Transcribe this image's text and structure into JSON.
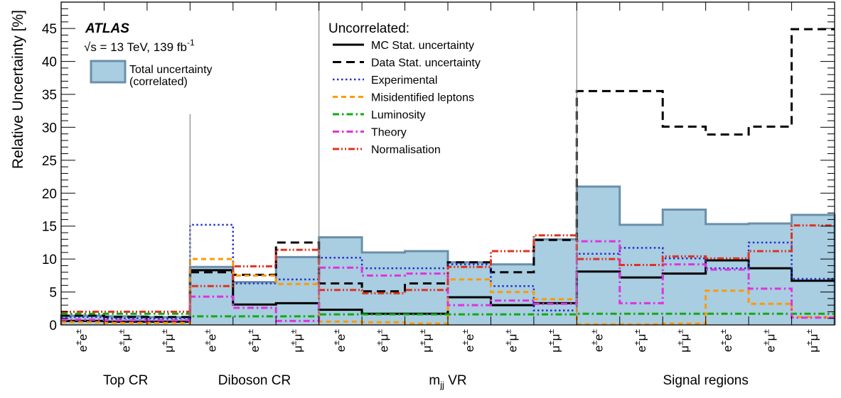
{
  "colors": {
    "band_fill": "#a9cde1",
    "band_edge": "#6a8fa9",
    "mc_stat": "#000000",
    "data_stat": "#000000",
    "experimental": "#2233cc",
    "misid": "#ff9900",
    "lumi": "#11aa11",
    "theory": "#dd33dd",
    "norm": "#dd3322",
    "separator": "#888888"
  },
  "header": {
    "atlas": "ATLAS",
    "energy": "√s = 13 TeV, 139 fb",
    "energy_sup": "-1"
  },
  "legend_left": {
    "total_line1": "Total uncertainty",
    "total_line2": "(correlated)"
  },
  "legend_right": {
    "title": "Uncorrelated:",
    "items": [
      {
        "key": "mc_stat",
        "label": "MC Stat. uncertainty",
        "style": "solid"
      },
      {
        "key": "data_stat",
        "label": "Data Stat. uncertainty",
        "style": "dashed"
      },
      {
        "key": "experimental",
        "label": "Experimental",
        "style": "dotted"
      },
      {
        "key": "misid",
        "label": "Misidentified leptons",
        "style": "dashed"
      },
      {
        "key": "lumi",
        "label": "Luminosity",
        "style": "dashdot"
      },
      {
        "key": "theory",
        "label": "Theory",
        "style": "dashdot"
      },
      {
        "key": "norm",
        "label": "Normalisation",
        "style": "dashdotdot"
      }
    ]
  },
  "chart_data": {
    "type": "bar",
    "ylabel": "Relative Uncertainty [%]",
    "ylim": [
      0,
      49
    ],
    "yticks": [
      0,
      5,
      10,
      15,
      20,
      25,
      30,
      35,
      40,
      45
    ],
    "bins": [
      {
        "base": "e",
        "sup": "±",
        "base2": "e",
        "sup2": "±"
      },
      {
        "base": "e",
        "sup": "±",
        "base2": "μ",
        "sup2": "±"
      },
      {
        "base": "μ",
        "sup": "±",
        "base2": "μ",
        "sup2": "±"
      },
      {
        "base": "e",
        "sup": "±",
        "base2": "e",
        "sup2": "±"
      },
      {
        "base": "e",
        "sup": "±",
        "base2": "μ",
        "sup2": "±"
      },
      {
        "base": "μ",
        "sup": "±",
        "base2": "μ",
        "sup2": "±"
      },
      {
        "base": "e",
        "sup": "±",
        "base2": "e",
        "sup2": "±"
      },
      {
        "base": "e",
        "sup": "±",
        "base2": "μ",
        "sup2": "±"
      },
      {
        "base": "μ",
        "sup": "±",
        "base2": "μ",
        "sup2": "±"
      },
      {
        "base": "e",
        "sup": "±",
        "base2": "e",
        "sup2": "±"
      },
      {
        "base": "e",
        "sup": "±",
        "base2": "μ",
        "sup2": "±"
      },
      {
        "base": "μ",
        "sup": "±",
        "base2": "μ",
        "sup2": "±"
      },
      {
        "base": "e",
        "sup": "±",
        "base2": "e",
        "sup2": "±"
      },
      {
        "base": "e",
        "sup": "±",
        "base2": "μ",
        "sup2": "±"
      },
      {
        "base": "μ",
        "sup": "±",
        "base2": "μ",
        "sup2": "±"
      },
      {
        "base": "e",
        "sup": "±",
        "base2": "e",
        "sup2": "±"
      },
      {
        "base": "e",
        "sup": "±",
        "base2": "μ",
        "sup2": "±"
      },
      {
        "base": "μ",
        "sup": "±",
        "base2": "μ",
        "sup2": "±"
      }
    ],
    "regions": [
      {
        "label": "Top CR",
        "start": 0,
        "end": 3
      },
      {
        "label": "Diboson CR",
        "start": 3,
        "end": 6
      },
      {
        "label": "m",
        "label_sub": "jj",
        "label_rest": " VR",
        "start": 6,
        "end": 12
      },
      {
        "label": "Signal regions",
        "start": 12,
        "end": 18
      }
    ],
    "separators": [
      {
        "at": 3,
        "top": 32
      },
      {
        "at": 6,
        "top": 49
      },
      {
        "at": 12,
        "top": 49
      }
    ],
    "total": [
      1.4,
      1.3,
      1.2,
      8.8,
      6.5,
      10.3,
      13.3,
      11.0,
      11.2,
      9.5,
      9.2,
      13.0,
      21.0,
      15.2,
      17.5,
      15.3,
      15.4,
      16.7
    ],
    "series": [
      {
        "key": "mc_stat",
        "values": [
          0.6,
          0.5,
          0.5,
          8.3,
          3.1,
          3.3,
          2.3,
          1.7,
          1.7,
          4.2,
          3.0,
          3.3,
          8.1,
          7.2,
          7.8,
          9.8,
          8.6,
          6.7
        ]
      },
      {
        "key": "data_stat",
        "values": [
          1.4,
          1.2,
          1.2,
          8.0,
          7.6,
          12.5,
          6.3,
          5.1,
          6.3,
          9.5,
          8.0,
          12.9,
          35.5,
          35.5,
          30.1,
          28.9,
          30.1,
          44.9
        ]
      },
      {
        "key": "experimental",
        "values": [
          1.2,
          1.0,
          1.0,
          15.2,
          6.3,
          6.9,
          10.2,
          8.6,
          8.6,
          9.2,
          5.9,
          2.2,
          10.8,
          11.7,
          10.1,
          8.6,
          12.5,
          7.0
        ]
      },
      {
        "key": "misid",
        "values": [
          0.4,
          0.3,
          0.3,
          10.0,
          7.5,
          6.2,
          0.5,
          0.4,
          0.2,
          6.9,
          5.0,
          3.9,
          0.1,
          0.1,
          0.2,
          5.2,
          3.2,
          1.2
        ]
      },
      {
        "key": "lumi",
        "values": [
          1.7,
          1.7,
          1.7,
          1.3,
          1.3,
          1.3,
          1.6,
          1.6,
          1.6,
          1.6,
          1.6,
          1.6,
          1.7,
          1.7,
          1.7,
          1.7,
          1.7,
          1.7
        ]
      },
      {
        "key": "theory",
        "values": [
          0.8,
          0.7,
          0.7,
          4.3,
          2.6,
          0.6,
          8.7,
          7.5,
          7.8,
          3.0,
          3.7,
          3.2,
          12.7,
          3.3,
          9.2,
          8.4,
          5.5,
          1.1
        ]
      },
      {
        "key": "norm",
        "values": [
          2.0,
          2.0,
          2.0,
          5.9,
          8.9,
          11.4,
          5.3,
          4.8,
          5.3,
          8.8,
          11.2,
          13.6,
          10.0,
          9.1,
          10.4,
          10.1,
          11.2,
          15.1
        ]
      }
    ]
  }
}
